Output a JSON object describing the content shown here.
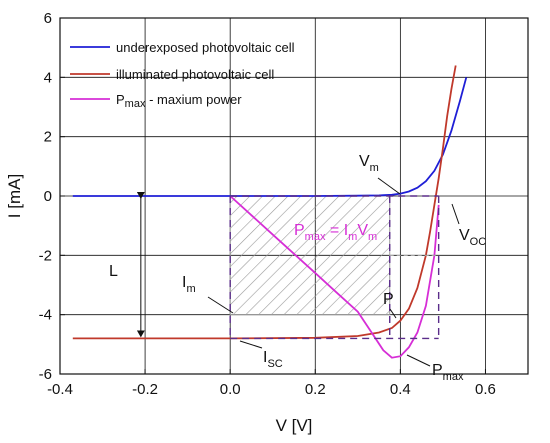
{
  "chart_data": {
    "type": "line",
    "title": "",
    "xlabel": "V [V]",
    "ylabel": "I [mA]",
    "xlim": [
      -0.4,
      0.7
    ],
    "ylim": [
      -6,
      6
    ],
    "xticks": [
      "-0.4",
      "-0.2",
      "0.0",
      "0.2",
      "0.4",
      "0.6"
    ],
    "yticks": [
      "-6",
      "-4",
      "-2",
      "0",
      "2",
      "4",
      "6"
    ],
    "grid": true,
    "legend_position": "top-left",
    "series": [
      {
        "name": "underexposed photovoltaic cell",
        "color": "#1f1fd6",
        "x": [
          -0.37,
          0.0,
          0.2,
          0.3,
          0.35,
          0.38,
          0.4,
          0.42,
          0.44,
          0.46,
          0.48,
          0.5,
          0.52,
          0.54,
          0.555
        ],
        "y": [
          0.0,
          0.0,
          0.0,
          0.01,
          0.02,
          0.04,
          0.08,
          0.15,
          0.28,
          0.5,
          0.85,
          1.4,
          2.2,
          3.2,
          4.0
        ]
      },
      {
        "name": "illuminated photovoltaic cell",
        "color": "#c0392b",
        "x": [
          -0.37,
          0.0,
          0.2,
          0.3,
          0.35,
          0.38,
          0.4,
          0.42,
          0.44,
          0.46,
          0.47,
          0.48,
          0.49,
          0.5,
          0.51,
          0.52,
          0.53
        ],
        "y": [
          -4.8,
          -4.8,
          -4.78,
          -4.72,
          -4.6,
          -4.45,
          -4.2,
          -3.8,
          -3.1,
          -2.0,
          -1.2,
          -0.3,
          0.6,
          1.6,
          2.7,
          3.6,
          4.4
        ]
      },
      {
        "name": "Pₘₐₓ - maxium power",
        "color": "#d62ed6",
        "x": [
          0.0,
          0.05,
          0.1,
          0.15,
          0.2,
          0.25,
          0.3,
          0.33,
          0.36,
          0.38,
          0.4,
          0.42,
          0.44,
          0.46,
          0.48,
          0.49
        ],
        "y": [
          0.0,
          -0.65,
          -1.3,
          -1.95,
          -2.6,
          -3.25,
          -3.9,
          -4.55,
          -5.2,
          -5.45,
          -5.4,
          -5.1,
          -4.6,
          -3.7,
          -2.0,
          -0.3
        ]
      }
    ],
    "reference_lines": {
      "v_m": 0.375,
      "i_m": -4.0,
      "v_oc": 0.49,
      "i_sc": -4.8
    }
  },
  "legend": {
    "entries": [
      {
        "label": "underexposed photovoltaic cell",
        "color": "#1f1fd6"
      },
      {
        "label": "illuminated photovoltaic cell",
        "color": "#c0392b"
      },
      {
        "label_main": "P",
        "label_sub": "max",
        "label_rest": " - maxium power",
        "color": "#d62ed6"
      }
    ]
  },
  "annotations": {
    "vm": {
      "main": "V",
      "sub": "m"
    },
    "voc": {
      "main": "V",
      "sub": "OC"
    },
    "pmax_eq": {
      "p": "P",
      "p_sub": "max",
      "eq": " = I",
      "i_sub": "m",
      "v": "V",
      "v_sub": "m"
    },
    "l": "L",
    "im": {
      "main": "I",
      "sub": "m"
    },
    "p": "P",
    "isc": {
      "main": "I",
      "sub": "SC"
    },
    "pmax": {
      "main": "P",
      "sub": "max"
    }
  }
}
